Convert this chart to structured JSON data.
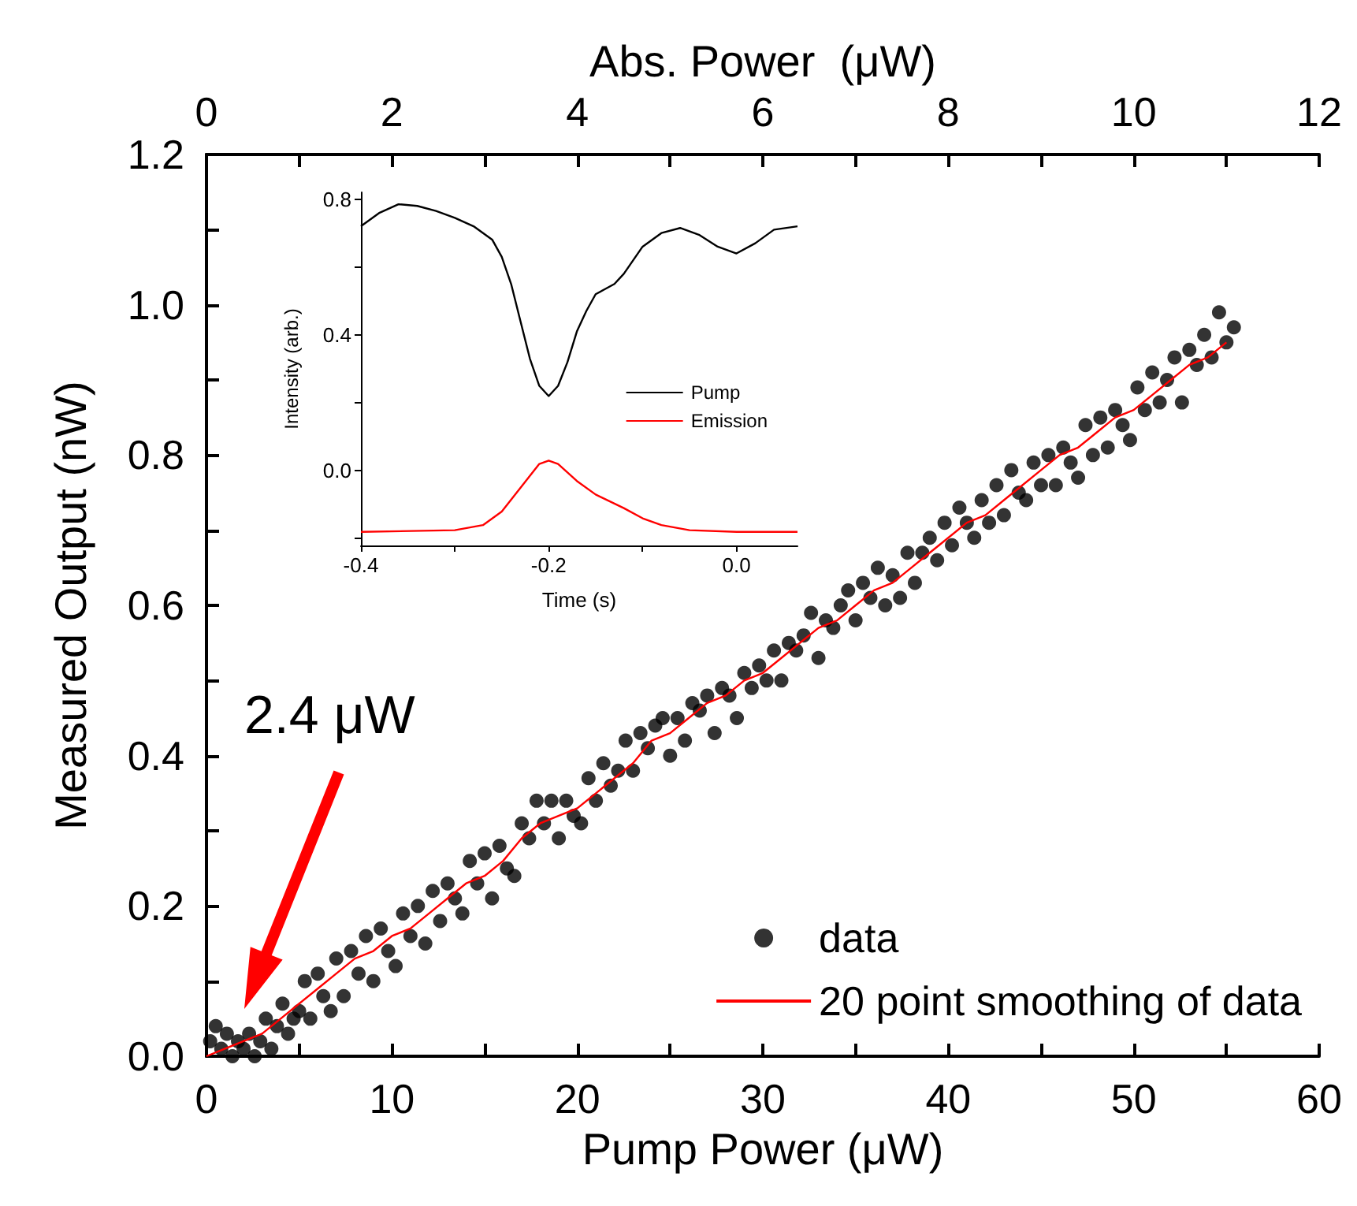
{
  "chart_data": [
    {
      "type": "scatter",
      "xlabel": "Pump Power (μW)",
      "ylabel": "Measured Output (nW)",
      "x2label": "Abs. Power  (μW)",
      "xlim": [
        0,
        60
      ],
      "xticks": [
        0,
        {
          "value": 5,
          "label": null
        },
        10,
        {
          "value": 15,
          "label": null
        },
        20,
        {
          "value": 25,
          "label": null
        },
        30,
        {
          "value": 35,
          "label": null
        },
        40,
        {
          "value": 45,
          "label": null
        },
        50,
        {
          "value": 55,
          "label": null
        },
        60
      ],
      "x2lim": [
        0,
        12
      ],
      "x2ticks": [
        0,
        {
          "value": 1,
          "label": null
        },
        2,
        {
          "value": 3,
          "label": null
        },
        4,
        {
          "value": 5,
          "label": null
        },
        6,
        {
          "value": 7,
          "label": null
        },
        8,
        {
          "value": 9,
          "label": null
        },
        10,
        {
          "value": 11,
          "label": null
        },
        12
      ],
      "ylim": [
        0,
        1.2
      ],
      "yticks": [
        {
          "value": 0,
          "label": "0.0"
        },
        {
          "value": 0.1,
          "label": null
        },
        0.2,
        {
          "value": 0.3,
          "label": null
        },
        0.4,
        {
          "value": 0.5,
          "label": null
        },
        0.6,
        {
          "value": 0.7,
          "label": null
        },
        0.8,
        {
          "value": 0.9,
          "label": null
        },
        {
          "value": 1,
          "label": "1.0"
        },
        {
          "value": 1.1,
          "label": null
        },
        1.2
      ],
      "legend": "bottom right",
      "annotations": [
        "2.4 μW"
      ],
      "series": [
        {
          "name": "data",
          "marker": "circle",
          "color": "#000000",
          "x": [
            0.2,
            0.5,
            0.8,
            1.1,
            1.4,
            1.7,
            2.0,
            2.3,
            2.6,
            2.9,
            3.2,
            3.5,
            3.8,
            4.1,
            4.4,
            4.7,
            5.0,
            5.3,
            5.6,
            6.0,
            6.3,
            6.7,
            7.0,
            7.4,
            7.8,
            8.2,
            8.6,
            9.0,
            9.4,
            9.8,
            10.2,
            10.6,
            11.0,
            11.4,
            11.8,
            12.2,
            12.6,
            13.0,
            13.4,
            13.8,
            14.2,
            14.6,
            15.0,
            15.4,
            15.8,
            16.2,
            16.6,
            17.0,
            17.4,
            17.8,
            18.2,
            18.6,
            19.0,
            19.4,
            19.8,
            20.2,
            20.6,
            21.0,
            21.4,
            21.8,
            22.2,
            22.6,
            23.0,
            23.4,
            23.8,
            24.2,
            24.6,
            25.0,
            25.4,
            25.8,
            26.2,
            26.6,
            27.0,
            27.4,
            27.8,
            28.2,
            28.6,
            29.0,
            29.4,
            29.8,
            30.2,
            30.6,
            31.0,
            31.4,
            31.8,
            32.2,
            32.6,
            33.0,
            33.4,
            33.8,
            34.2,
            34.6,
            35.0,
            35.4,
            35.8,
            36.2,
            36.6,
            37.0,
            37.4,
            37.8,
            38.2,
            38.6,
            39.0,
            39.4,
            39.8,
            40.2,
            40.6,
            41.0,
            41.4,
            41.8,
            42.2,
            42.6,
            43.0,
            43.4,
            43.8,
            44.2,
            44.6,
            45.0,
            45.4,
            45.8,
            46.2,
            46.6,
            47.0,
            47.4,
            47.8,
            48.2,
            48.6,
            49.0,
            49.4,
            49.8,
            50.2,
            50.6,
            51.0,
            51.4,
            51.8,
            52.2,
            52.6,
            53.0,
            53.4,
            53.8,
            54.2,
            54.6,
            55.0,
            55.4
          ],
          "values": [
            0.02,
            0.04,
            0.01,
            0.03,
            0.0,
            0.02,
            0.01,
            0.03,
            0.0,
            0.02,
            0.05,
            0.01,
            0.04,
            0.07,
            0.03,
            0.05,
            0.06,
            0.1,
            0.05,
            0.11,
            0.08,
            0.06,
            0.13,
            0.08,
            0.14,
            0.11,
            0.16,
            0.1,
            0.17,
            0.14,
            0.12,
            0.19,
            0.16,
            0.2,
            0.15,
            0.22,
            0.18,
            0.23,
            0.21,
            0.19,
            0.26,
            0.23,
            0.27,
            0.21,
            0.28,
            0.25,
            0.24,
            0.31,
            0.29,
            0.34,
            0.31,
            0.34,
            0.29,
            0.34,
            0.32,
            0.31,
            0.37,
            0.34,
            0.39,
            0.36,
            0.38,
            0.42,
            0.38,
            0.43,
            0.41,
            0.44,
            0.45,
            0.4,
            0.45,
            0.42,
            0.47,
            0.46,
            0.48,
            0.43,
            0.49,
            0.48,
            0.45,
            0.51,
            0.49,
            0.52,
            0.5,
            0.54,
            0.5,
            0.55,
            0.54,
            0.56,
            0.59,
            0.53,
            0.58,
            0.57,
            0.6,
            0.62,
            0.58,
            0.63,
            0.61,
            0.65,
            0.6,
            0.64,
            0.61,
            0.67,
            0.63,
            0.67,
            0.69,
            0.66,
            0.71,
            0.68,
            0.73,
            0.71,
            0.69,
            0.74,
            0.71,
            0.76,
            0.72,
            0.78,
            0.75,
            0.74,
            0.79,
            0.76,
            0.8,
            0.76,
            0.81,
            0.79,
            0.77,
            0.84,
            0.8,
            0.85,
            0.81,
            0.86,
            0.84,
            0.82,
            0.89,
            0.86,
            0.91,
            0.87,
            0.9,
            0.93,
            0.87,
            0.94,
            0.92,
            0.96,
            0.93,
            0.99,
            0.95,
            0.97
          ]
        },
        {
          "name": "20 point smoothing of data",
          "type": "line",
          "color": "#ff0000",
          "x": [
            0,
            1,
            2,
            3,
            4,
            5,
            6,
            7,
            8,
            9,
            10,
            11,
            12,
            13,
            14,
            15,
            16,
            17,
            18,
            19,
            20,
            21,
            22,
            23,
            24,
            25,
            26,
            27,
            28,
            29,
            30,
            31,
            32,
            33,
            34,
            35,
            36,
            37,
            38,
            39,
            40,
            41,
            42,
            43,
            44,
            45,
            46,
            47,
            48,
            49,
            50,
            51,
            52,
            53,
            54,
            55
          ],
          "values": [
            0.0,
            0.01,
            0.02,
            0.03,
            0.05,
            0.07,
            0.09,
            0.11,
            0.13,
            0.14,
            0.16,
            0.17,
            0.19,
            0.21,
            0.23,
            0.24,
            0.26,
            0.29,
            0.31,
            0.32,
            0.33,
            0.35,
            0.37,
            0.39,
            0.42,
            0.43,
            0.45,
            0.47,
            0.48,
            0.5,
            0.51,
            0.53,
            0.55,
            0.57,
            0.58,
            0.6,
            0.62,
            0.63,
            0.65,
            0.67,
            0.69,
            0.71,
            0.72,
            0.74,
            0.76,
            0.78,
            0.8,
            0.81,
            0.83,
            0.85,
            0.86,
            0.88,
            0.9,
            0.92,
            0.93,
            0.95
          ]
        }
      ]
    },
    {
      "type": "line",
      "xlabel": "Time (s)",
      "ylabel": "Intensity (arb.)",
      "legend": "right",
      "xlim": [
        -0.4,
        0.065
      ],
      "xticks": [
        {
          "value": -0.4,
          "label": "-0.4"
        },
        {
          "value": -0.3,
          "label": null
        },
        {
          "value": -0.2,
          "label": "-0.2"
        },
        {
          "value": -0.1,
          "label": null
        },
        {
          "value": 0,
          "label": "0.0"
        }
      ],
      "ylim": [
        -0.22,
        0.82
      ],
      "yticks": [
        {
          "value": -0.2,
          "label": null
        },
        {
          "value": 0,
          "label": "0.0"
        },
        {
          "value": 0.2,
          "label": null
        },
        0.4,
        {
          "value": 0.6,
          "label": null
        },
        0.8
      ],
      "series": [
        {
          "name": "Pump",
          "color": "#000000",
          "x": [
            -0.4,
            -0.38,
            -0.36,
            -0.34,
            -0.32,
            -0.3,
            -0.28,
            -0.26,
            -0.25,
            -0.24,
            -0.23,
            -0.22,
            -0.21,
            -0.2,
            -0.19,
            -0.18,
            -0.17,
            -0.16,
            -0.15,
            -0.14,
            -0.13,
            -0.12,
            -0.11,
            -0.1,
            -0.08,
            -0.06,
            -0.04,
            -0.02,
            0.0,
            0.02,
            0.04,
            0.065
          ],
          "values": [
            0.72,
            0.76,
            0.785,
            0.78,
            0.765,
            0.745,
            0.72,
            0.68,
            0.63,
            0.55,
            0.44,
            0.33,
            0.25,
            0.22,
            0.25,
            0.32,
            0.41,
            0.47,
            0.52,
            0.535,
            0.55,
            0.58,
            0.62,
            0.66,
            0.7,
            0.715,
            0.695,
            0.66,
            0.64,
            0.67,
            0.71,
            0.72
          ]
        },
        {
          "name": "Emission",
          "color": "#ff0000",
          "x": [
            -0.4,
            -0.3,
            -0.27,
            -0.25,
            -0.23,
            -0.21,
            -0.2,
            -0.19,
            -0.17,
            -0.15,
            -0.12,
            -0.1,
            -0.08,
            -0.05,
            0.0,
            0.065
          ],
          "values": [
            -0.18,
            -0.175,
            -0.16,
            -0.12,
            -0.05,
            0.02,
            0.03,
            0.02,
            -0.03,
            -0.07,
            -0.11,
            -0.14,
            -0.16,
            -0.175,
            -0.18,
            -0.18
          ]
        }
      ]
    }
  ]
}
